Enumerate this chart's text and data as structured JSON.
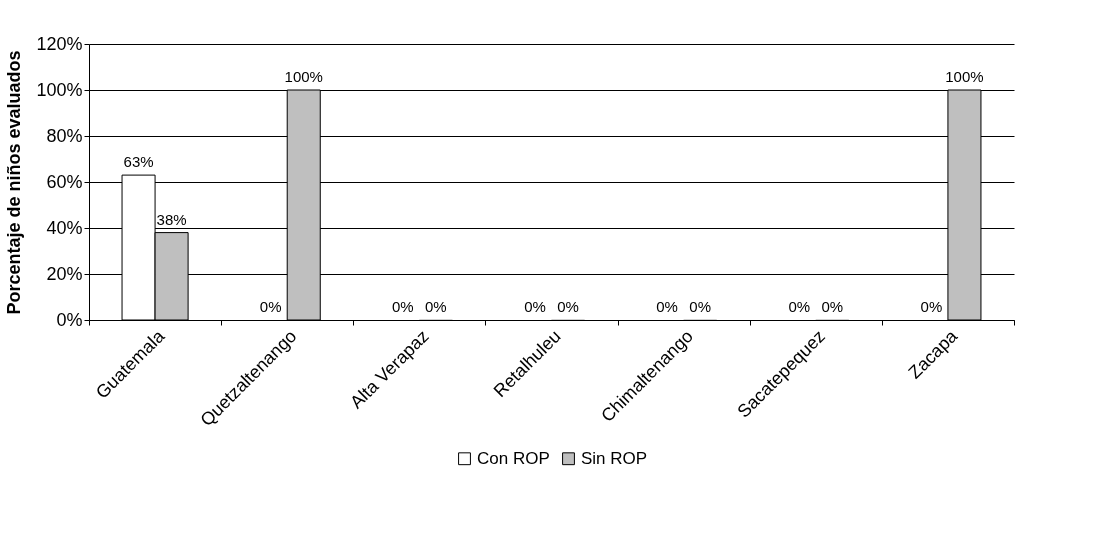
{
  "chart_data": {
    "type": "bar",
    "ylabel": "Porcentaje de niños evaluados",
    "categories": [
      "Guatemala",
      "Quetzaltenango",
      "Alta Verapaz",
      "Retalhuleu",
      "Chimaltenango",
      "Sacatepequez",
      "Zacapa"
    ],
    "series": [
      {
        "name": "Con ROP",
        "color": "#ffffff",
        "values": [
          63,
          0,
          0,
          0,
          0,
          0,
          0
        ],
        "value_labels": [
          "63%",
          "0%",
          "0%",
          "0%",
          "0%",
          "0%",
          "0%"
        ]
      },
      {
        "name": "Sin ROP",
        "color": "#bfbfbf",
        "values": [
          38,
          100,
          0,
          0,
          0,
          0,
          100
        ],
        "value_labels": [
          "38%",
          "100%",
          "0%",
          "0%",
          "0%",
          "0%",
          "100%"
        ]
      }
    ],
    "ylim": [
      0,
      120
    ],
    "yticks": [
      {
        "value": 0,
        "label": "0%"
      },
      {
        "value": 20,
        "label": "20%"
      },
      {
        "value": 40,
        "label": "40%"
      },
      {
        "value": 60,
        "label": "60%"
      },
      {
        "value": 80,
        "label": "80%"
      },
      {
        "value": 100,
        "label": "100%"
      },
      {
        "value": 120,
        "label": "120%"
      }
    ],
    "grid": "y",
    "legend": "bottom"
  }
}
